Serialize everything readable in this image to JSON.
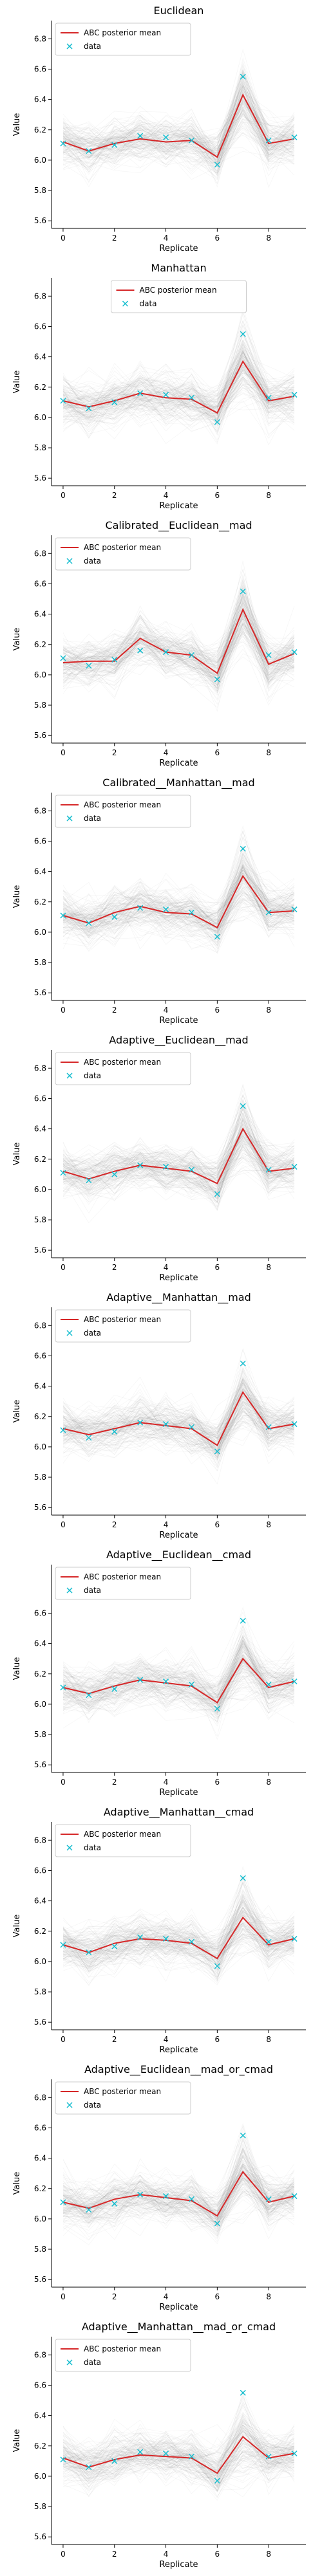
{
  "figure": {
    "legend": {
      "mean_label": "ABC posterior mean",
      "data_label": "data"
    },
    "colors": {
      "mean": "#d62728",
      "data": "#17becf",
      "samples": "#808080",
      "axes": "#000000"
    }
  },
  "chart_data": [
    {
      "type": "line",
      "title": "Euclidean",
      "xlabel": "Replicate",
      "ylabel": "Value",
      "xlim": [
        -0.45,
        9.45
      ],
      "ylim": [
        5.55,
        6.92
      ],
      "xticks": [
        0,
        2,
        4,
        6,
        8
      ],
      "yticks": [
        5.6,
        5.8,
        6.0,
        6.2,
        6.4,
        6.6,
        6.8
      ],
      "legend_position": "top-left",
      "x": [
        0,
        1,
        2,
        3,
        4,
        5,
        6,
        7,
        8,
        9
      ],
      "series": [
        {
          "name": "ABC posterior mean",
          "values": [
            6.12,
            6.06,
            6.11,
            6.14,
            6.12,
            6.13,
            6.02,
            6.43,
            6.11,
            6.14
          ]
        },
        {
          "name": "data",
          "values": [
            6.11,
            6.06,
            6.1,
            6.16,
            6.15,
            6.13,
            5.97,
            6.55,
            6.13,
            6.15
          ]
        }
      ]
    },
    {
      "type": "line",
      "title": "Manhattan",
      "xlabel": "Replicate",
      "ylabel": "Value",
      "xlim": [
        -0.45,
        9.45
      ],
      "ylim": [
        5.55,
        6.92
      ],
      "xticks": [
        0,
        2,
        4,
        6,
        8
      ],
      "yticks": [
        5.6,
        5.8,
        6.0,
        6.2,
        6.4,
        6.6,
        6.8
      ],
      "legend_position": "top-center",
      "x": [
        0,
        1,
        2,
        3,
        4,
        5,
        6,
        7,
        8,
        9
      ],
      "series": [
        {
          "name": "ABC posterior mean",
          "values": [
            6.11,
            6.07,
            6.11,
            6.16,
            6.13,
            6.12,
            6.03,
            6.37,
            6.11,
            6.14
          ]
        },
        {
          "name": "data",
          "values": [
            6.11,
            6.06,
            6.1,
            6.16,
            6.15,
            6.13,
            5.97,
            6.55,
            6.13,
            6.15
          ]
        }
      ]
    },
    {
      "type": "line",
      "title": "Calibrated__Euclidean__mad",
      "xlabel": "Replicate",
      "ylabel": "Value",
      "xlim": [
        -0.45,
        9.45
      ],
      "ylim": [
        5.55,
        6.92
      ],
      "xticks": [
        0,
        2,
        4,
        6,
        8
      ],
      "yticks": [
        5.6,
        5.8,
        6.0,
        6.2,
        6.4,
        6.6,
        6.8
      ],
      "legend_position": "top-left",
      "x": [
        0,
        1,
        2,
        3,
        4,
        5,
        6,
        7,
        8,
        9
      ],
      "series": [
        {
          "name": "ABC posterior mean",
          "values": [
            6.08,
            6.09,
            6.09,
            6.24,
            6.15,
            6.13,
            6.01,
            6.43,
            6.07,
            6.14
          ]
        },
        {
          "name": "data",
          "values": [
            6.11,
            6.06,
            6.1,
            6.16,
            6.15,
            6.13,
            5.97,
            6.55,
            6.13,
            6.15
          ]
        }
      ]
    },
    {
      "type": "line",
      "title": "Calibrated__Manhattan__mad",
      "xlabel": "Replicate",
      "ylabel": "Value",
      "xlim": [
        -0.45,
        9.45
      ],
      "ylim": [
        5.55,
        6.92
      ],
      "xticks": [
        0,
        2,
        4,
        6,
        8
      ],
      "yticks": [
        5.6,
        5.8,
        6.0,
        6.2,
        6.4,
        6.6,
        6.8
      ],
      "legend_position": "top-left",
      "x": [
        0,
        1,
        2,
        3,
        4,
        5,
        6,
        7,
        8,
        9
      ],
      "series": [
        {
          "name": "ABC posterior mean",
          "values": [
            6.11,
            6.06,
            6.13,
            6.17,
            6.13,
            6.12,
            6.03,
            6.37,
            6.13,
            6.14
          ]
        },
        {
          "name": "data",
          "values": [
            6.11,
            6.06,
            6.1,
            6.16,
            6.15,
            6.13,
            5.97,
            6.55,
            6.13,
            6.15
          ]
        }
      ]
    },
    {
      "type": "line",
      "title": "Adaptive__Euclidean__mad",
      "xlabel": "Replicate",
      "ylabel": "Value",
      "xlim": [
        -0.45,
        9.45
      ],
      "ylim": [
        5.55,
        6.92
      ],
      "xticks": [
        0,
        2,
        4,
        6,
        8
      ],
      "yticks": [
        5.6,
        5.8,
        6.0,
        6.2,
        6.4,
        6.6,
        6.8
      ],
      "legend_position": "top-left",
      "x": [
        0,
        1,
        2,
        3,
        4,
        5,
        6,
        7,
        8,
        9
      ],
      "series": [
        {
          "name": "ABC posterior mean",
          "values": [
            6.12,
            6.07,
            6.12,
            6.16,
            6.14,
            6.12,
            6.04,
            6.4,
            6.12,
            6.14
          ]
        },
        {
          "name": "data",
          "values": [
            6.11,
            6.06,
            6.1,
            6.16,
            6.15,
            6.13,
            5.97,
            6.55,
            6.13,
            6.15
          ]
        }
      ]
    },
    {
      "type": "line",
      "title": "Adaptive__Manhattan__mad",
      "xlabel": "Replicate",
      "ylabel": "Value",
      "xlim": [
        -0.45,
        9.45
      ],
      "ylim": [
        5.55,
        6.92
      ],
      "xticks": [
        0,
        2,
        4,
        6,
        8
      ],
      "yticks": [
        5.6,
        5.8,
        6.0,
        6.2,
        6.4,
        6.6,
        6.8
      ],
      "legend_position": "top-left",
      "x": [
        0,
        1,
        2,
        3,
        4,
        5,
        6,
        7,
        8,
        9
      ],
      "series": [
        {
          "name": "ABC posterior mean",
          "values": [
            6.12,
            6.08,
            6.12,
            6.16,
            6.14,
            6.12,
            6.01,
            6.36,
            6.12,
            6.15
          ]
        },
        {
          "name": "data",
          "values": [
            6.11,
            6.06,
            6.1,
            6.16,
            6.15,
            6.13,
            5.97,
            6.55,
            6.13,
            6.15
          ]
        }
      ]
    },
    {
      "type": "line",
      "title": "Adaptive__Euclidean__cmad",
      "xlabel": "Replicate",
      "ylabel": "Value",
      "xlim": [
        -0.45,
        9.45
      ],
      "ylim": [
        5.55,
        6.92
      ],
      "xticks": [
        0,
        2,
        4,
        6,
        8
      ],
      "yticks": [
        5.6,
        5.8,
        6.0,
        6.2,
        6.4,
        6.6
      ],
      "legend_position": "top-left",
      "x": [
        0,
        1,
        2,
        3,
        4,
        5,
        6,
        7,
        8,
        9
      ],
      "series": [
        {
          "name": "ABC posterior mean",
          "values": [
            6.11,
            6.07,
            6.12,
            6.16,
            6.14,
            6.12,
            6.01,
            6.3,
            6.11,
            6.15
          ]
        },
        {
          "name": "data",
          "values": [
            6.11,
            6.06,
            6.1,
            6.16,
            6.15,
            6.13,
            5.97,
            6.55,
            6.13,
            6.15
          ]
        }
      ]
    },
    {
      "type": "line",
      "title": "Adaptive__Manhattan__cmad",
      "xlabel": "Replicate",
      "ylabel": "Value",
      "xlim": [
        -0.45,
        9.45
      ],
      "ylim": [
        5.55,
        6.92
      ],
      "xticks": [
        0,
        2,
        4,
        6,
        8
      ],
      "yticks": [
        5.6,
        5.8,
        6.0,
        6.2,
        6.4,
        6.6,
        6.8
      ],
      "legend_position": "top-left",
      "x": [
        0,
        1,
        2,
        3,
        4,
        5,
        6,
        7,
        8,
        9
      ],
      "series": [
        {
          "name": "ABC posterior mean",
          "values": [
            6.11,
            6.06,
            6.12,
            6.15,
            6.14,
            6.12,
            6.02,
            6.29,
            6.11,
            6.15
          ]
        },
        {
          "name": "data",
          "values": [
            6.11,
            6.06,
            6.1,
            6.16,
            6.15,
            6.13,
            5.97,
            6.55,
            6.13,
            6.15
          ]
        }
      ]
    },
    {
      "type": "line",
      "title": "Adaptive__Euclidean__mad_or_cmad",
      "xlabel": "Replicate",
      "ylabel": "Value",
      "xlim": [
        -0.45,
        9.45
      ],
      "ylim": [
        5.55,
        6.92
      ],
      "xticks": [
        0,
        2,
        4,
        6,
        8
      ],
      "yticks": [
        5.6,
        5.8,
        6.0,
        6.2,
        6.4,
        6.6,
        6.8
      ],
      "legend_position": "top-left",
      "x": [
        0,
        1,
        2,
        3,
        4,
        5,
        6,
        7,
        8,
        9
      ],
      "series": [
        {
          "name": "ABC posterior mean",
          "values": [
            6.11,
            6.07,
            6.13,
            6.16,
            6.14,
            6.12,
            6.02,
            6.31,
            6.11,
            6.15
          ]
        },
        {
          "name": "data",
          "values": [
            6.11,
            6.06,
            6.1,
            6.16,
            6.15,
            6.13,
            5.97,
            6.55,
            6.13,
            6.15
          ]
        }
      ]
    },
    {
      "type": "line",
      "title": "Adaptive__Manhattan__mad_or_cmad",
      "xlabel": "Replicate",
      "ylabel": "Value",
      "xlim": [
        -0.45,
        9.45
      ],
      "ylim": [
        5.55,
        6.92
      ],
      "xticks": [
        0,
        2,
        4,
        6,
        8
      ],
      "yticks": [
        5.6,
        5.8,
        6.0,
        6.2,
        6.4,
        6.6,
        6.8
      ],
      "legend_position": "top-left",
      "x": [
        0,
        1,
        2,
        3,
        4,
        5,
        6,
        7,
        8,
        9
      ],
      "series": [
        {
          "name": "ABC posterior mean",
          "values": [
            6.12,
            6.06,
            6.11,
            6.14,
            6.13,
            6.12,
            6.02,
            6.26,
            6.12,
            6.15
          ]
        },
        {
          "name": "data",
          "values": [
            6.11,
            6.06,
            6.1,
            6.16,
            6.15,
            6.13,
            5.97,
            6.55,
            6.13,
            6.15
          ]
        }
      ]
    }
  ]
}
